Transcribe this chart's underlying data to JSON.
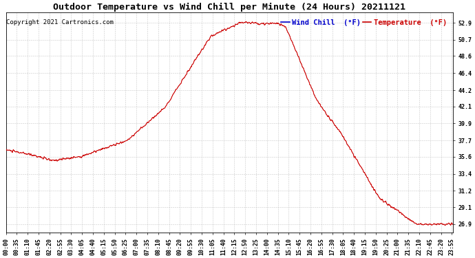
{
  "title": "Outdoor Temperature vs Wind Chill per Minute (24 Hours) 20211121",
  "copyright_text": "Copyright 2021 Cartronics.com",
  "legend_wind_chill": "Wind Chill  (°F)",
  "legend_temperature": "Temperature  (°F)",
  "background_color": "#ffffff",
  "plot_bg_color": "#ffffff",
  "grid_color": "#bbbbbb",
  "line_color_red": "#cc0000",
  "line_color_blue": "#0000cc",
  "ytick_labels": [
    "26.9",
    "29.1",
    "31.2",
    "33.4",
    "35.6",
    "37.7",
    "39.9",
    "42.1",
    "44.2",
    "46.4",
    "48.6",
    "50.7",
    "52.9"
  ],
  "ytick_values": [
    26.9,
    29.1,
    31.2,
    33.4,
    35.6,
    37.7,
    39.9,
    42.1,
    44.2,
    46.4,
    48.6,
    50.7,
    52.9
  ],
  "ylim": [
    25.8,
    54.2
  ],
  "xtick_labels": [
    "00:00",
    "00:35",
    "01:10",
    "01:45",
    "02:20",
    "02:55",
    "03:30",
    "04:05",
    "04:40",
    "05:15",
    "05:50",
    "06:25",
    "07:00",
    "07:35",
    "08:10",
    "08:45",
    "09:20",
    "09:55",
    "10:30",
    "11:05",
    "11:40",
    "12:15",
    "12:50",
    "13:25",
    "14:00",
    "14:35",
    "15:10",
    "15:45",
    "16:20",
    "16:55",
    "17:30",
    "18:05",
    "18:40",
    "19:15",
    "19:50",
    "20:25",
    "21:00",
    "21:35",
    "22:10",
    "22:45",
    "23:20",
    "23:55"
  ],
  "title_fontsize": 9.5,
  "tick_fontsize": 6.0,
  "copyright_fontsize": 6.5,
  "legend_fontsize": 7.5
}
